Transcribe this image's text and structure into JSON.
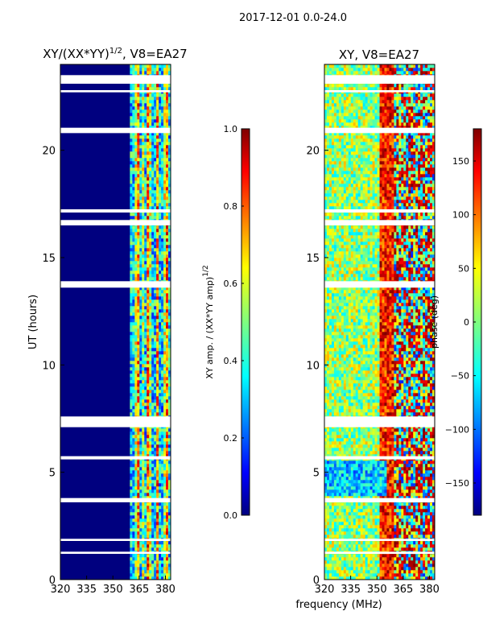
{
  "chart_data": {
    "type": "heatmap",
    "suptitle": "2017-12-01 0.0-24.0",
    "xlabel": "frequency (MHz)",
    "panels": [
      {
        "id": "amp",
        "title": "XY/(XX*YY)^{1/2}, V8=EA27",
        "title_base": "XY/(XX*YY)",
        "title_exp": "1/2",
        "title_tail": ", V8=EA27",
        "ylabel": "UT (hours)",
        "xlim": [
          320,
          383
        ],
        "ylim": [
          0,
          24
        ],
        "xticks": [
          "320",
          "335",
          "350",
          "365",
          "380"
        ],
        "yticks": [
          "0",
          "5",
          "10",
          "15",
          "20"
        ],
        "colormap": "jet"
      },
      {
        "id": "phase",
        "title": "XY, V8=EA27",
        "ylabel": "",
        "xlim": [
          320,
          383
        ],
        "ylim": [
          0,
          24
        ],
        "xticks": [
          "320",
          "335",
          "350",
          "365",
          "380"
        ],
        "yticks": [
          "0",
          "5",
          "10",
          "15",
          "20"
        ],
        "colormap": "jet"
      }
    ],
    "colorbars": [
      {
        "id": "amp_cb",
        "label_base": "XY amp. / (XX*YY amp)",
        "label_exp": "1/2",
        "range": [
          0.0,
          1.0
        ],
        "ticks": [
          "0.0",
          "0.2",
          "0.4",
          "0.6",
          "0.8",
          "1.0"
        ],
        "tick_values": [
          0.0,
          0.2,
          0.4,
          0.6,
          0.8,
          1.0
        ]
      },
      {
        "id": "phase_cb",
        "label": "phase (deg)",
        "range": [
          -180,
          180
        ],
        "ticks": [
          "−150",
          "−100",
          "−50",
          "0",
          "50",
          "100",
          "150"
        ],
        "tick_values": [
          -150,
          -100,
          -50,
          0,
          50,
          100,
          150
        ]
      }
    ],
    "blank_time_bands_hours": [
      [
        23.1,
        23.5
      ],
      [
        22.7,
        22.8
      ],
      [
        20.8,
        21.05
      ],
      [
        17.1,
        17.25
      ],
      [
        16.5,
        16.75
      ],
      [
        13.6,
        13.9
      ],
      [
        7.1,
        7.6
      ],
      [
        5.6,
        5.75
      ],
      [
        3.6,
        3.8
      ],
      [
        1.8,
        1.9
      ],
      [
        1.2,
        1.3
      ]
    ],
    "active_band_mhz": [
      360,
      383
    ],
    "phase_block_hours": [
      3.9,
      5.5
    ]
  }
}
